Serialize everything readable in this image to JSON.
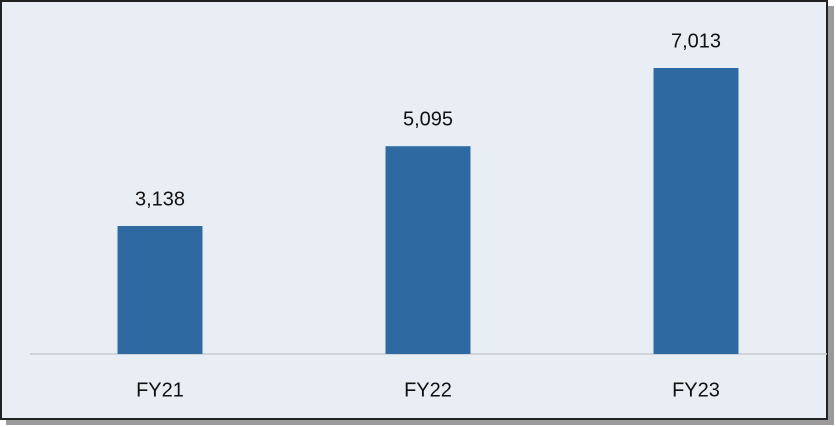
{
  "chart_data": {
    "type": "bar",
    "categories": [
      "FY21",
      "FY22",
      "FY23"
    ],
    "values": [
      3138,
      5095,
      7013
    ],
    "value_labels": [
      "3,138",
      "5,095",
      "7,013"
    ],
    "color": "#2e6aa1"
  }
}
